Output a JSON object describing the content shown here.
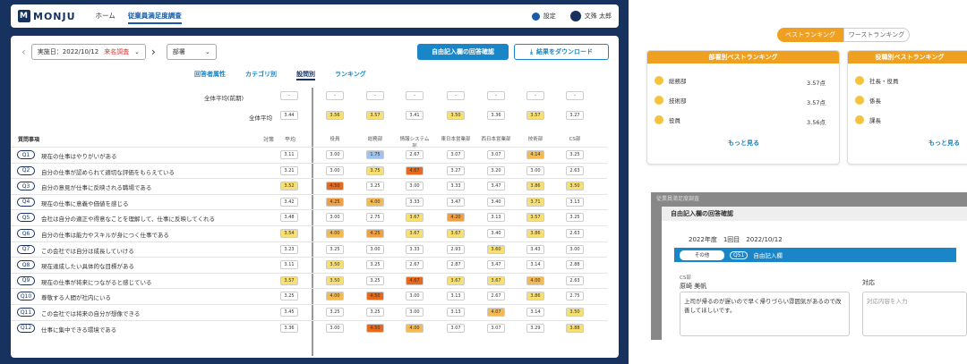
{
  "app": {
    "logo": "MONJU",
    "nav": [
      "ホーム",
      "従業員満足度調査"
    ],
    "settings": "設定",
    "user": "文殊 太郎"
  },
  "controls": {
    "date_label": "実施日：2022/10/12",
    "unnamed": "来名調査",
    "dept": "部署",
    "answer_btn": "自由記入欄の回答確認",
    "download_btn": "結果をダウンロード"
  },
  "tabs": [
    "回答者属性",
    "カテゴリ別",
    "設問別",
    "ランキング"
  ],
  "summary": {
    "overall_prev_label": "全体平均(前期)",
    "overall_label": "全体平均",
    "overall_prev": "-",
    "overall": "3.44"
  },
  "columns": {
    "question": "質問事項",
    "taisaku": "対策",
    "avg": "平均",
    "depts": [
      "役員",
      "総務部",
      "情報システム部",
      "東日本営業部",
      "西日本営業部",
      "技術部",
      "CS部"
    ]
  },
  "dept_prev": [
    "-",
    "-",
    "-",
    "-",
    "-",
    "-",
    "-"
  ],
  "dept_overall": [
    "3.56",
    "3.57",
    "3.41",
    "3.50",
    "3.36",
    "3.57",
    "3.27"
  ],
  "questions": [
    {
      "id": "Q1",
      "text": "現在の仕事はやりがいがある",
      "avg": "3.11",
      "vals": [
        "3.00",
        "1.75",
        "2.67",
        "3.07",
        "3.07",
        "4.14",
        "3.25"
      ]
    },
    {
      "id": "Q2",
      "text": "自分の仕事が認められて適切な評価をもらえている",
      "avg": "3.21",
      "vals": [
        "3.00",
        "3.75",
        "4.67",
        "3.27",
        "3.20",
        "3.00",
        "2.63"
      ]
    },
    {
      "id": "Q3",
      "text": "自分の意見が仕事に反映される職場である",
      "avg": "3.52",
      "vals": [
        "4.50",
        "3.25",
        "3.00",
        "3.33",
        "3.47",
        "3.86",
        "3.50"
      ]
    },
    {
      "id": "Q4",
      "text": "現在の仕事に意義や価値を感じる",
      "avg": "3.42",
      "vals": [
        "4.25",
        "4.00",
        "3.33",
        "3.47",
        "3.40",
        "3.71",
        "3.13"
      ]
    },
    {
      "id": "Q5",
      "text": "会社は自分の適正や得意なことを理解して、仕事に反映してくれる",
      "avg": "3.48",
      "vals": [
        "3.00",
        "2.75",
        "3.67",
        "4.20",
        "3.13",
        "3.57",
        "3.25"
      ]
    },
    {
      "id": "Q6",
      "text": "自分の仕事は能力やスキルが身につく仕事である",
      "avg": "3.54",
      "vals": [
        "4.00",
        "4.25",
        "3.67",
        "3.67",
        "3.40",
        "3.86",
        "2.63"
      ]
    },
    {
      "id": "Q7",
      "text": "この会社では自分は成長していける",
      "avg": "3.23",
      "vals": [
        "3.25",
        "3.00",
        "3.33",
        "2.93",
        "3.60",
        "3.43",
        "3.00"
      ]
    },
    {
      "id": "Q8",
      "text": "現在達成したい具体的な目標がある",
      "avg": "3.11",
      "vals": [
        "3.50",
        "3.25",
        "2.67",
        "2.87",
        "3.47",
        "3.14",
        "2.88"
      ]
    },
    {
      "id": "Q9",
      "text": "現在の仕事が将来につながると感じている",
      "avg": "3.57",
      "vals": [
        "3.50",
        "3.25",
        "4.67",
        "3.67",
        "3.67",
        "4.00",
        "2.63"
      ]
    },
    {
      "id": "Q10",
      "text": "尊敬する人間が社内にいる",
      "avg": "3.25",
      "vals": [
        "4.00",
        "4.50",
        "3.00",
        "3.13",
        "2.67",
        "3.86",
        "2.75"
      ]
    },
    {
      "id": "Q11",
      "text": "この会社では将来の自分が想像できる",
      "avg": "3.45",
      "vals": [
        "3.25",
        "3.25",
        "3.00",
        "3.13",
        "4.07",
        "3.14",
        "3.50"
      ]
    },
    {
      "id": "Q12",
      "text": "仕事に集中できる環境である",
      "avg": "3.36",
      "vals": [
        "3.00",
        "4.50",
        "4.00",
        "3.07",
        "3.07",
        "3.29",
        "3.88"
      ]
    }
  ],
  "ranking": {
    "tab_best": "ベストランキング",
    "tab_worst": "ワーストランキング",
    "dept_title": "部署別ベストランキング",
    "dept_rows": [
      {
        "name": "総務部",
        "val": "3.57点"
      },
      {
        "name": "技術部",
        "val": "3.57点"
      },
      {
        "name": "役員",
        "val": "3.56点"
      }
    ],
    "role_title": "役職別ベストランキング",
    "role_rows": [
      {
        "name": "社長・役員"
      },
      {
        "name": "係長"
      },
      {
        "name": "課長"
      }
    ],
    "more": "もっと見る"
  },
  "modal": {
    "crumb": "従業員満足度調査",
    "title": "自由記入欄の回答確認",
    "year": "2022年度",
    "round": "1回目",
    "date": "2022/10/12",
    "pill": "その他",
    "q": "Q51",
    "q_label": "自由記入欄",
    "dept": "CS部",
    "name": "原崎 美帆",
    "comment": "上司が帰るのが遅いので早く帰りづらい雰囲気があるので改善してほしいです。",
    "resp_label": "対応",
    "resp_placeholder": "対応内容を入力"
  },
  "colors": {
    "navy": "#17325f",
    "blue": "#1a86c8",
    "orange": "#f0a020"
  }
}
